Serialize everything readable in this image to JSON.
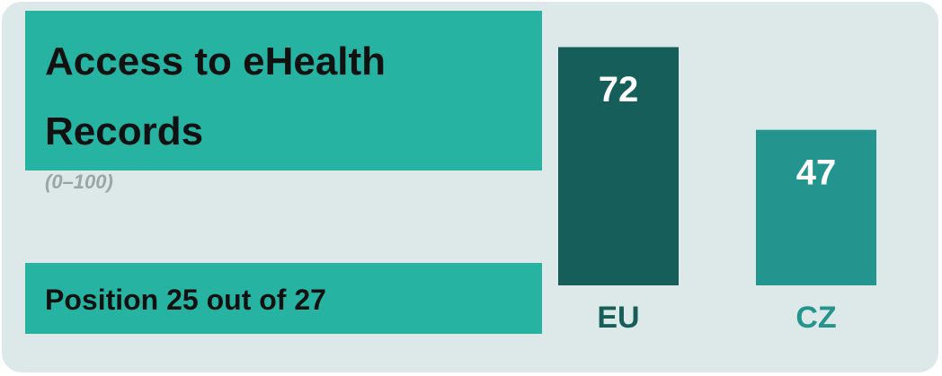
{
  "chart_data": {
    "type": "bar",
    "title": "Access to eHealth Records",
    "subtitle": "(0–100)",
    "annotation": "Position 25 out of 27",
    "categories": [
      "EU",
      "CZ"
    ],
    "values": [
      72,
      47
    ],
    "colors": [
      "#155e5a",
      "#24958e"
    ],
    "ylim": [
      0,
      80
    ]
  }
}
